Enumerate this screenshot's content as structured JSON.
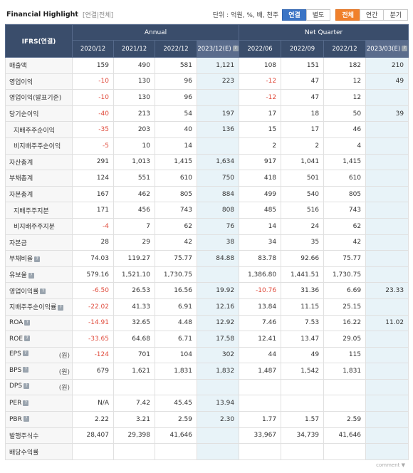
{
  "header": {
    "title": "Financial Highlight",
    "subtitle": "[연결|전체]",
    "unit": "단위 : 억원, %, 배, 천주",
    "scope_buttons": [
      "연결",
      "별도"
    ],
    "period_buttons": [
      "전체",
      "연간",
      "분기"
    ]
  },
  "table": {
    "corner": "IFRS(연결)",
    "group_annual": "Annual",
    "group_quarter": "Net Quarter",
    "columns": [
      "2020/12",
      "2021/12",
      "2022/12",
      "2023/12(E)",
      "2022/06",
      "2022/09",
      "2022/12",
      "2023/03(E)"
    ],
    "rows": [
      {
        "label": "매출액",
        "values": [
          "159",
          "490",
          "581",
          "1,121",
          "108",
          "151",
          "182",
          "210"
        ]
      },
      {
        "label": "영업이익",
        "values": [
          "-10",
          "130",
          "96",
          "223",
          "-12",
          "47",
          "12",
          "49"
        ]
      },
      {
        "label": "영업이익(발표기준)",
        "values": [
          "-10",
          "130",
          "96",
          "",
          "-12",
          "47",
          "12",
          ""
        ]
      },
      {
        "label": "당기순이익",
        "values": [
          "-40",
          "213",
          "54",
          "197",
          "17",
          "18",
          "50",
          "39"
        ]
      },
      {
        "label": "지배주주순이익",
        "values": [
          "-35",
          "203",
          "40",
          "136",
          "15",
          "17",
          "46",
          ""
        ]
      },
      {
        "label": "비지배주주순이익",
        "values": [
          "-5",
          "10",
          "14",
          "",
          "2",
          "2",
          "4",
          ""
        ]
      },
      {
        "label": "자산총계",
        "values": [
          "291",
          "1,013",
          "1,415",
          "1,634",
          "917",
          "1,041",
          "1,415",
          ""
        ]
      },
      {
        "label": "부채총계",
        "values": [
          "124",
          "551",
          "610",
          "750",
          "418",
          "501",
          "610",
          ""
        ]
      },
      {
        "label": "자본총계",
        "values": [
          "167",
          "462",
          "805",
          "884",
          "499",
          "540",
          "805",
          ""
        ]
      },
      {
        "label": "지배주주지분",
        "values": [
          "171",
          "456",
          "743",
          "808",
          "485",
          "516",
          "743",
          ""
        ]
      },
      {
        "label": "비지배주주지분",
        "values": [
          "-4",
          "7",
          "62",
          "76",
          "14",
          "24",
          "62",
          ""
        ]
      },
      {
        "label": "자본금",
        "values": [
          "28",
          "29",
          "42",
          "38",
          "34",
          "35",
          "42",
          ""
        ]
      },
      {
        "label": "부채비율",
        "values": [
          "74.03",
          "119.27",
          "75.77",
          "84.88",
          "83.78",
          "92.66",
          "75.77",
          ""
        ]
      },
      {
        "label": "유보율",
        "values": [
          "579.16",
          "1,521.10",
          "1,730.75",
          "",
          "1,386.80",
          "1,441.51",
          "1,730.75",
          ""
        ]
      },
      {
        "label": "영업이익률",
        "values": [
          "-6.50",
          "26.53",
          "16.56",
          "19.92",
          "-10.76",
          "31.36",
          "6.69",
          "23.33"
        ]
      },
      {
        "label": "지배주주순이익률",
        "values": [
          "-22.02",
          "41.33",
          "6.91",
          "12.16",
          "13.84",
          "11.15",
          "25.15",
          ""
        ]
      },
      {
        "label": "ROA",
        "values": [
          "-14.91",
          "32.65",
          "4.48",
          "12.92",
          "7.46",
          "7.53",
          "16.22",
          "11.02"
        ]
      },
      {
        "label": "ROE",
        "values": [
          "-33.65",
          "64.68",
          "6.71",
          "17.58",
          "12.41",
          "13.47",
          "29.05",
          ""
        ]
      },
      {
        "label": "EPS",
        "unit": "(원)",
        "values": [
          "-124",
          "701",
          "104",
          "302",
          "44",
          "49",
          "115",
          ""
        ]
      },
      {
        "label": "BPS",
        "unit": "(원)",
        "values": [
          "679",
          "1,621",
          "1,831",
          "1,832",
          "1,487",
          "1,542",
          "1,831",
          ""
        ]
      },
      {
        "label": "DPS",
        "unit": "(원)",
        "values": [
          "",
          "",
          "",
          "",
          "",
          "",
          "",
          ""
        ]
      },
      {
        "label": "PER",
        "values": [
          "N/A",
          "7.42",
          "45.45",
          "13.94",
          "",
          "",
          "",
          ""
        ]
      },
      {
        "label": "PBR",
        "values": [
          "2.22",
          "3.21",
          "2.59",
          "2.30",
          "1.77",
          "1.57",
          "2.59",
          ""
        ]
      },
      {
        "label": "발행주식수",
        "values": [
          "28,407",
          "29,398",
          "41,646",
          "",
          "33,967",
          "34,739",
          "41,646",
          ""
        ]
      },
      {
        "label": "배당수익률",
        "values": [
          "",
          "",
          "",
          "",
          "",
          "",
          "",
          ""
        ]
      }
    ]
  },
  "footer": "comment ▼"
}
